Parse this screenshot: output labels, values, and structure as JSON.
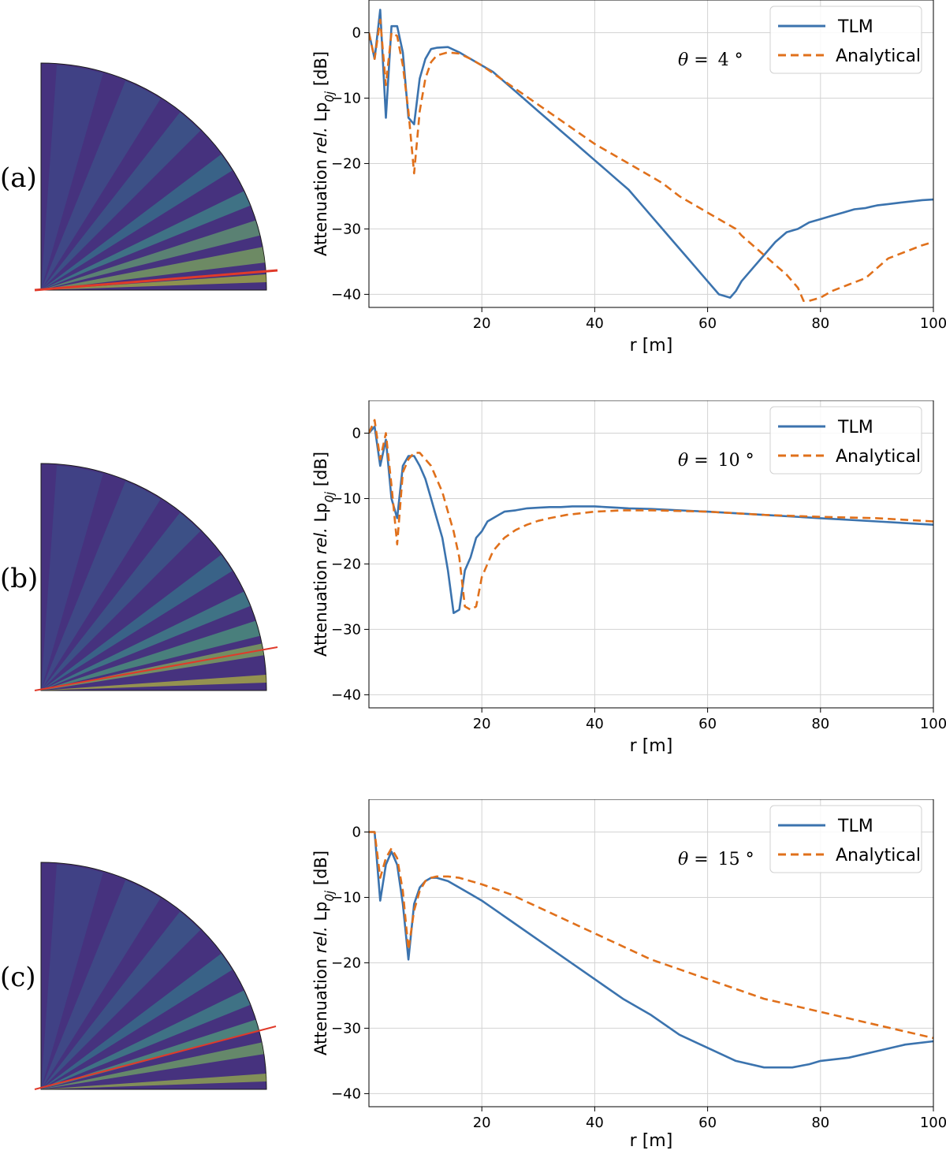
{
  "chart_data": [
    {
      "type": "line",
      "panel_label": "(a)",
      "angle_text": "4 °",
      "theta_symbol": "θ =",
      "xlabel": "r [m]",
      "ylabel": {
        "pre": "Attenuation ",
        "italic": "rel.",
        "post": " Lp",
        "sub": "0j",
        "unit": " [dB]"
      },
      "xlim": [
        0,
        100
      ],
      "ylim": [
        -42,
        5
      ],
      "xticks": [
        20,
        40,
        60,
        80,
        100
      ],
      "yticks": [
        0,
        -10,
        -20,
        -30,
        -40
      ],
      "grid": true,
      "legend_position": "top-right",
      "series": [
        {
          "name": "TLM",
          "color": "#3b73ae",
          "style": "solid",
          "x": [
            0,
            1,
            2,
            3,
            4,
            5,
            6,
            7,
            8,
            9,
            10,
            11,
            12,
            14,
            16,
            18,
            20,
            22,
            24,
            26,
            28,
            30,
            32,
            34,
            36,
            38,
            40,
            42,
            44,
            46,
            48,
            50,
            52,
            54,
            56,
            58,
            60,
            62,
            64,
            65,
            66,
            68,
            70,
            72,
            74,
            76,
            77,
            78,
            80,
            82,
            84,
            86,
            88,
            89,
            90,
            92,
            94,
            96,
            98,
            100
          ],
          "y": [
            0,
            -4,
            3.5,
            -13,
            1,
            1,
            -3,
            -13,
            -14,
            -7,
            -4,
            -2.5,
            -2.3,
            -2.2,
            -3,
            -4,
            -5,
            -6,
            -7.5,
            -9,
            -10.5,
            -12,
            -13.5,
            -15,
            -16.5,
            -18,
            -19.5,
            -21,
            -22.5,
            -24,
            -26,
            -28,
            -30,
            -32,
            -34,
            -36,
            -38,
            -40,
            -40.5,
            -39.5,
            -38,
            -36,
            -34,
            -32,
            -30.5,
            -30,
            -29.5,
            -29,
            -28.5,
            -28,
            -27.5,
            -27,
            -26.8,
            -26.6,
            -26.4,
            -26.2,
            -26,
            -25.8,
            -25.6,
            -25.5
          ]
        },
        {
          "name": "Analytical",
          "color": "#e0701b",
          "style": "dashed",
          "x": [
            0,
            1,
            2,
            3,
            4,
            5,
            6,
            7,
            8,
            9,
            10,
            11,
            12,
            14,
            16,
            18,
            20,
            25,
            30,
            35,
            40,
            45,
            50,
            52,
            55,
            60,
            65,
            66,
            70,
            74,
            76,
            77,
            78,
            80,
            82,
            85,
            88,
            90,
            92,
            95,
            98,
            100
          ],
          "y": [
            0,
            -4,
            2,
            -8,
            0,
            -0.5,
            -5,
            -12,
            -21.5,
            -12,
            -7,
            -4.5,
            -3.5,
            -3,
            -3.2,
            -4,
            -5,
            -8,
            -11,
            -14,
            -17,
            -19.5,
            -22,
            -23,
            -25,
            -27.5,
            -30,
            -31,
            -34,
            -37,
            -39,
            -41,
            -41,
            -40.5,
            -39.5,
            -38.5,
            -37.5,
            -36,
            -34.5,
            -33.5,
            -32.5,
            -32
          ]
        }
      ]
    },
    {
      "type": "line",
      "panel_label": "(b)",
      "angle_text": "10 °",
      "theta_symbol": "θ =",
      "xlabel": "r [m]",
      "ylabel": {
        "pre": "Attenuation ",
        "italic": "rel.",
        "post": " Lp",
        "sub": "0j",
        "unit": " [dB]"
      },
      "xlim": [
        0,
        100
      ],
      "ylim": [
        -42,
        5
      ],
      "xticks": [
        20,
        40,
        60,
        80,
        100
      ],
      "yticks": [
        0,
        -10,
        -20,
        -30,
        -40
      ],
      "grid": true,
      "legend_position": "top-right",
      "series": [
        {
          "name": "TLM",
          "color": "#3b73ae",
          "style": "solid",
          "x": [
            0,
            1,
            2,
            3,
            4,
            5,
            6,
            7,
            8,
            9,
            10,
            11,
            12,
            13,
            14,
            15,
            16,
            17,
            18,
            19,
            20,
            21,
            22,
            24,
            26,
            28,
            30,
            32,
            34,
            36,
            38,
            40,
            42,
            44,
            46,
            50,
            60,
            70,
            80,
            90,
            100
          ],
          "y": [
            0,
            1,
            -5,
            -1,
            -10,
            -13,
            -5,
            -3.5,
            -3.5,
            -5,
            -7,
            -10,
            -13,
            -16,
            -21,
            -27.5,
            -27,
            -21,
            -19,
            -16,
            -15,
            -13.5,
            -13,
            -12,
            -11.8,
            -11.5,
            -11.4,
            -11.3,
            -11.3,
            -11.2,
            -11.2,
            -11.2,
            -11.3,
            -11.4,
            -11.5,
            -11.6,
            -12,
            -12.5,
            -13,
            -13.5,
            -14
          ]
        },
        {
          "name": "Analytical",
          "color": "#e0701b",
          "style": "dashed",
          "x": [
            0,
            1,
            2,
            3,
            4,
            5,
            6,
            7,
            8,
            9,
            10,
            11,
            12,
            13,
            14,
            15,
            16,
            17,
            18,
            19,
            20,
            21,
            22,
            24,
            26,
            28,
            30,
            32,
            35,
            40,
            45,
            50,
            60,
            70,
            80,
            90,
            100
          ],
          "y": [
            0,
            2,
            -4,
            0,
            -8,
            -17,
            -6,
            -4,
            -3,
            -3,
            -4,
            -5,
            -7,
            -9,
            -12,
            -15,
            -19,
            -26.5,
            -27,
            -26.5,
            -22,
            -20,
            -18,
            -16,
            -14.8,
            -14,
            -13.4,
            -13,
            -12.5,
            -12,
            -11.8,
            -11.8,
            -12,
            -12.5,
            -12.8,
            -13,
            -13.5
          ]
        }
      ]
    },
    {
      "type": "line",
      "panel_label": "(c)",
      "angle_text": "15 °",
      "theta_symbol": "θ =",
      "xlabel": "r [m]",
      "ylabel": {
        "pre": "Attenuation ",
        "italic": "rel.",
        "post": " Lp",
        "sub": "0j",
        "unit": " [dB]"
      },
      "xlim": [
        0,
        100
      ],
      "ylim": [
        -42,
        5
      ],
      "xticks": [
        20,
        40,
        60,
        80,
        100
      ],
      "yticks": [
        0,
        -10,
        -20,
        -30,
        -40
      ],
      "grid": true,
      "legend_position": "top-right",
      "series": [
        {
          "name": "TLM",
          "color": "#3b73ae",
          "style": "solid",
          "x": [
            0,
            1,
            2,
            3,
            4,
            5,
            6,
            7,
            8,
            9,
            10,
            11,
            12,
            14,
            16,
            18,
            20,
            25,
            30,
            35,
            40,
            45,
            50,
            55,
            60,
            65,
            70,
            72,
            75,
            78,
            80,
            85,
            90,
            95,
            100
          ],
          "y": [
            0,
            0,
            -10.5,
            -5,
            -3,
            -5,
            -11,
            -19.5,
            -11,
            -8.5,
            -7.5,
            -7,
            -7,
            -7.5,
            -8.5,
            -9.5,
            -10.5,
            -13.5,
            -16.5,
            -19.5,
            -22.5,
            -25.5,
            -28,
            -31,
            -33,
            -35,
            -36,
            -36,
            -36,
            -35.5,
            -35,
            -34.5,
            -33.5,
            -32.5,
            -32
          ]
        },
        {
          "name": "Analytical",
          "color": "#e0701b",
          "style": "dashed",
          "x": [
            0,
            1,
            2,
            3,
            4,
            5,
            6,
            7,
            8,
            9,
            10,
            11,
            12,
            14,
            16,
            18,
            20,
            25,
            30,
            35,
            40,
            45,
            50,
            55,
            60,
            65,
            70,
            75,
            80,
            85,
            90,
            95,
            100
          ],
          "y": [
            0,
            0,
            -7,
            -4,
            -2.5,
            -4,
            -9,
            -18,
            -12,
            -9,
            -7.5,
            -7,
            -6.8,
            -6.8,
            -7,
            -7.5,
            -8,
            -9.5,
            -11.5,
            -13.5,
            -15.5,
            -17.5,
            -19.5,
            -21,
            -22.5,
            -24,
            -25.5,
            -26.5,
            -27.5,
            -28.5,
            -29.5,
            -30.5,
            -31.5
          ]
        }
      ]
    }
  ],
  "legend": {
    "tlm_label": "TLM",
    "analytical_label": "Analytical"
  }
}
